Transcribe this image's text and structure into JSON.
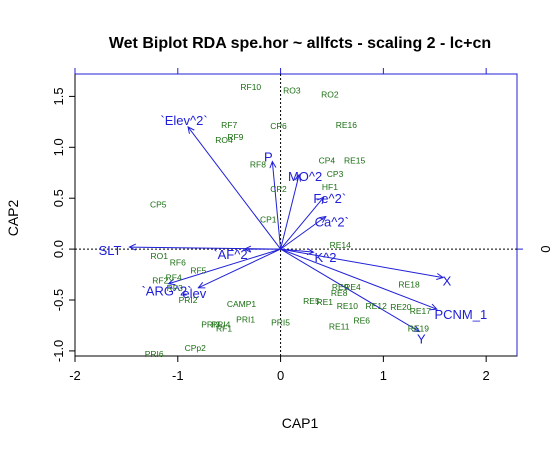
{
  "chart_data": {
    "type": "scatter",
    "title": "Wet Biplot RDA spe.hor ~ allfcts - scaling 2 - lc+cn",
    "xlabel": "CAP1",
    "ylabel": "CAP2",
    "xlim": [
      -2.0,
      2.3
    ],
    "ylim": [
      -1.05,
      1.72
    ],
    "xticks": [
      "-2",
      "-1",
      "0",
      "1",
      "2"
    ],
    "yticks": [
      "-1.0",
      "-0.5",
      "0.0",
      "0.5",
      "1.0",
      "1.5"
    ],
    "top_axis_ticks": [
      "",
      "",
      "",
      "",
      ""
    ],
    "right_axis_ticks": [
      "0"
    ],
    "colors": {
      "sites": "#1a6e12",
      "vectors": "#2020d8",
      "axes": "#000000",
      "frame": "#2020d8"
    },
    "sites": [
      {
        "label": "RF10",
        "x": -0.29,
        "y": 1.59
      },
      {
        "label": "RO3",
        "x": 0.11,
        "y": 1.56
      },
      {
        "label": "RO2",
        "x": 0.48,
        "y": 1.52
      },
      {
        "label": "RF7",
        "x": -0.5,
        "y": 1.22
      },
      {
        "label": "CP6",
        "x": -0.02,
        "y": 1.21
      },
      {
        "label": "RE16",
        "x": 0.64,
        "y": 1.22
      },
      {
        "label": "RF9",
        "x": -0.44,
        "y": 1.1
      },
      {
        "label": "RO4",
        "x": -0.55,
        "y": 1.07
      },
      {
        "label": "RF8",
        "x": -0.22,
        "y": 0.83
      },
      {
        "label": "CP4",
        "x": 0.45,
        "y": 0.87
      },
      {
        "label": "RE15",
        "x": 0.72,
        "y": 0.87
      },
      {
        "label": "CP3",
        "x": 0.53,
        "y": 0.74
      },
      {
        "label": "HF1",
        "x": 0.48,
        "y": 0.61
      },
      {
        "label": "CP2",
        "x": -0.02,
        "y": 0.59
      },
      {
        "label": "CP5",
        "x": -1.19,
        "y": 0.44
      },
      {
        "label": "CP1",
        "x": -0.12,
        "y": 0.29
      },
      {
        "label": "RE14",
        "x": 0.58,
        "y": 0.04
      },
      {
        "label": "RO1",
        "x": -1.18,
        "y": -0.07
      },
      {
        "label": "RF6",
        "x": -1.0,
        "y": -0.13
      },
      {
        "label": "RF5",
        "x": -0.8,
        "y": -0.21
      },
      {
        "label": "RF4",
        "x": -1.04,
        "y": -0.28
      },
      {
        "label": "RF2",
        "x": -1.17,
        "y": -0.31
      },
      {
        "label": "RF3",
        "x": -1.03,
        "y": -0.38
      },
      {
        "label": "PRI2",
        "x": -0.9,
        "y": -0.5
      },
      {
        "label": "CAMP1",
        "x": -0.38,
        "y": -0.54
      },
      {
        "label": "PRI1",
        "x": -0.34,
        "y": -0.69
      },
      {
        "label": "PRI3",
        "x": -0.68,
        "y": -0.74
      },
      {
        "label": "PRI4",
        "x": -0.58,
        "y": -0.74
      },
      {
        "label": "RF1",
        "x": -0.55,
        "y": -0.78
      },
      {
        "label": "PRI5",
        "x": 0.0,
        "y": -0.72
      },
      {
        "label": "PRI6",
        "x": -1.23,
        "y": -1.03
      },
      {
        "label": "CPp2",
        "x": -0.83,
        "y": -0.97
      },
      {
        "label": "RE18",
        "x": 1.25,
        "y": -0.35
      },
      {
        "label": "RE9",
        "x": 0.58,
        "y": -0.37
      },
      {
        "label": "RE4",
        "x": 0.7,
        "y": -0.37
      },
      {
        "label": "RE8",
        "x": 0.57,
        "y": -0.43
      },
      {
        "label": "RE5",
        "x": 0.3,
        "y": -0.51
      },
      {
        "label": "RE1",
        "x": 0.43,
        "y": -0.52
      },
      {
        "label": "RE10",
        "x": 0.65,
        "y": -0.56
      },
      {
        "label": "RE12",
        "x": 0.93,
        "y": -0.56
      },
      {
        "label": "RE20",
        "x": 1.17,
        "y": -0.57
      },
      {
        "label": "RE17",
        "x": 1.36,
        "y": -0.61
      },
      {
        "label": "RE6",
        "x": 0.79,
        "y": -0.7
      },
      {
        "label": "RE11",
        "x": 0.57,
        "y": -0.76
      },
      {
        "label": "RE19",
        "x": 1.34,
        "y": -0.78
      }
    ],
    "vectors": [
      {
        "label": "`Elev^2`",
        "x": -0.9,
        "y": 1.2
      },
      {
        "label": "P",
        "x": -0.08,
        "y": 0.86
      },
      {
        "label": "MO^2",
        "x": 0.18,
        "y": 0.73
      },
      {
        "label": "Fe^2`",
        "x": 0.42,
        "y": 0.51
      },
      {
        "label": "Ca^2`",
        "x": 0.44,
        "y": 0.32
      },
      {
        "label": "SLT",
        "x": -1.47,
        "y": 0.02
      },
      {
        "label": "`AF^2`",
        "x": -0.35,
        "y": 0.0
      },
      {
        "label": "K^2",
        "x": 0.32,
        "y": -0.03
      },
      {
        "label": "X",
        "x": 1.58,
        "y": -0.28
      },
      {
        "label": "`ARG^2`",
        "x": -1.09,
        "y": -0.34
      },
      {
        "label": "elev",
        "x": -0.8,
        "y": -0.38
      },
      {
        "label": "PCNM_1",
        "x": 1.52,
        "y": -0.59
      },
      {
        "label": "Y",
        "x": 1.35,
        "y": -0.81
      }
    ],
    "vector_label_offsets_note": "",
    "grid": false,
    "legend": "none"
  }
}
